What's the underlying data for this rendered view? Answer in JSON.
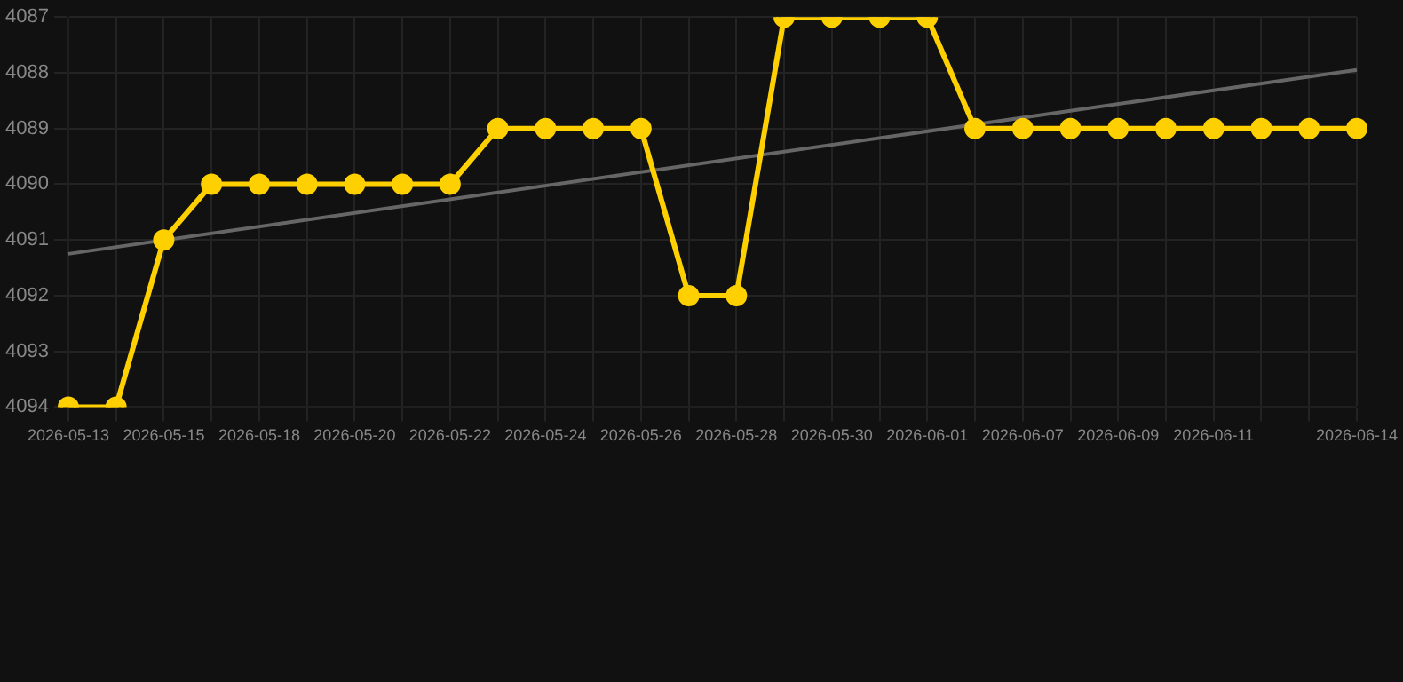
{
  "chart_data": {
    "type": "line",
    "categories": [
      "2026-05-13",
      null,
      "2026-05-15",
      null,
      "2026-05-18",
      null,
      "2026-05-20",
      null,
      "2026-05-22",
      null,
      "2026-05-24",
      null,
      "2026-05-26",
      null,
      "2026-05-28",
      null,
      "2026-05-30",
      null,
      "2026-06-01",
      null,
      "2026-06-07",
      null,
      "2026-06-09",
      null,
      "2026-06-11",
      null,
      null,
      "2026-06-14"
    ],
    "series": [
      {
        "color": "#ffd000",
        "marker": "circle",
        "values": [
          4094,
          4094,
          4091,
          4090,
          4090,
          4090,
          4090,
          4090,
          4090,
          4089,
          4089,
          4089,
          4089,
          4092,
          4092,
          4087,
          4087,
          4087,
          4087,
          4089,
          4089,
          4089,
          4089,
          4089,
          4089,
          4089,
          4089,
          4089
        ]
      },
      {
        "color": "#666666",
        "marker": "none",
        "values": [
          4091.25,
          null,
          null,
          null,
          null,
          null,
          null,
          null,
          null,
          null,
          null,
          null,
          null,
          null,
          null,
          null,
          null,
          null,
          null,
          null,
          null,
          null,
          null,
          null,
          null,
          null,
          null,
          4087.95
        ]
      }
    ],
    "ylim": [
      4094,
      4087
    ],
    "yticks": [
      4087,
      4088,
      4089,
      4090,
      4091,
      4092,
      4093,
      4094
    ],
    "grid": true
  }
}
